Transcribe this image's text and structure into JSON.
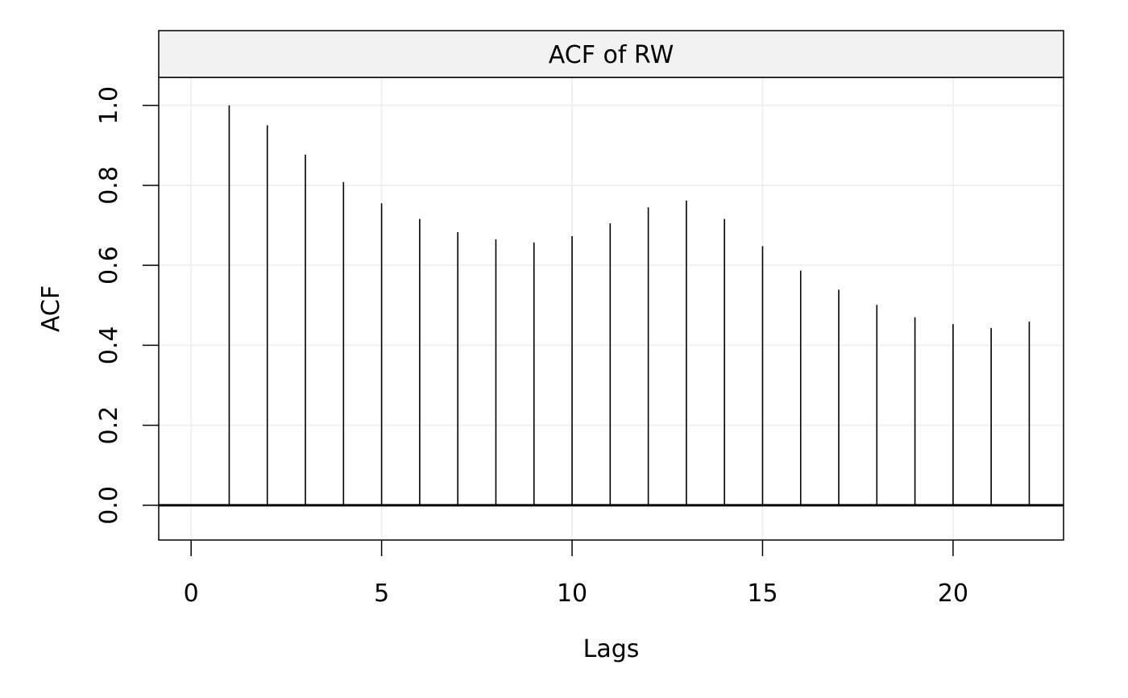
{
  "chart_data": {
    "type": "bar",
    "title": "ACF of RW",
    "xlabel": "Lags",
    "ylabel": "ACF",
    "x": [
      1,
      2,
      3,
      4,
      5,
      6,
      7,
      8,
      9,
      10,
      11,
      12,
      13,
      14,
      15,
      16,
      17,
      18,
      19,
      20,
      21,
      22
    ],
    "values": [
      1.0,
      0.95,
      0.877,
      0.808,
      0.755,
      0.716,
      0.683,
      0.665,
      0.657,
      0.673,
      0.705,
      0.745,
      0.762,
      0.716,
      0.648,
      0.587,
      0.539,
      0.501,
      0.47,
      0.453,
      0.443,
      0.459
    ],
    "xlim": [
      -0.85,
      22.9
    ],
    "ylim": [
      -0.087,
      1.07
    ],
    "xticks": [
      0,
      5,
      10,
      15,
      20
    ],
    "xtick_labels": [
      "0",
      "5",
      "10",
      "15",
      "20"
    ],
    "yticks": [
      0.0,
      0.2,
      0.4,
      0.6,
      0.8,
      1.0
    ],
    "ytick_labels": [
      "0.0",
      "0.2",
      "0.4",
      "0.6",
      "0.8",
      "1.0"
    ],
    "reference_line": 0,
    "grid": true,
    "legend": "none",
    "colors": {
      "line": "#000000",
      "grid": "#f0f0f0",
      "strip": "#f2f2f2"
    }
  }
}
